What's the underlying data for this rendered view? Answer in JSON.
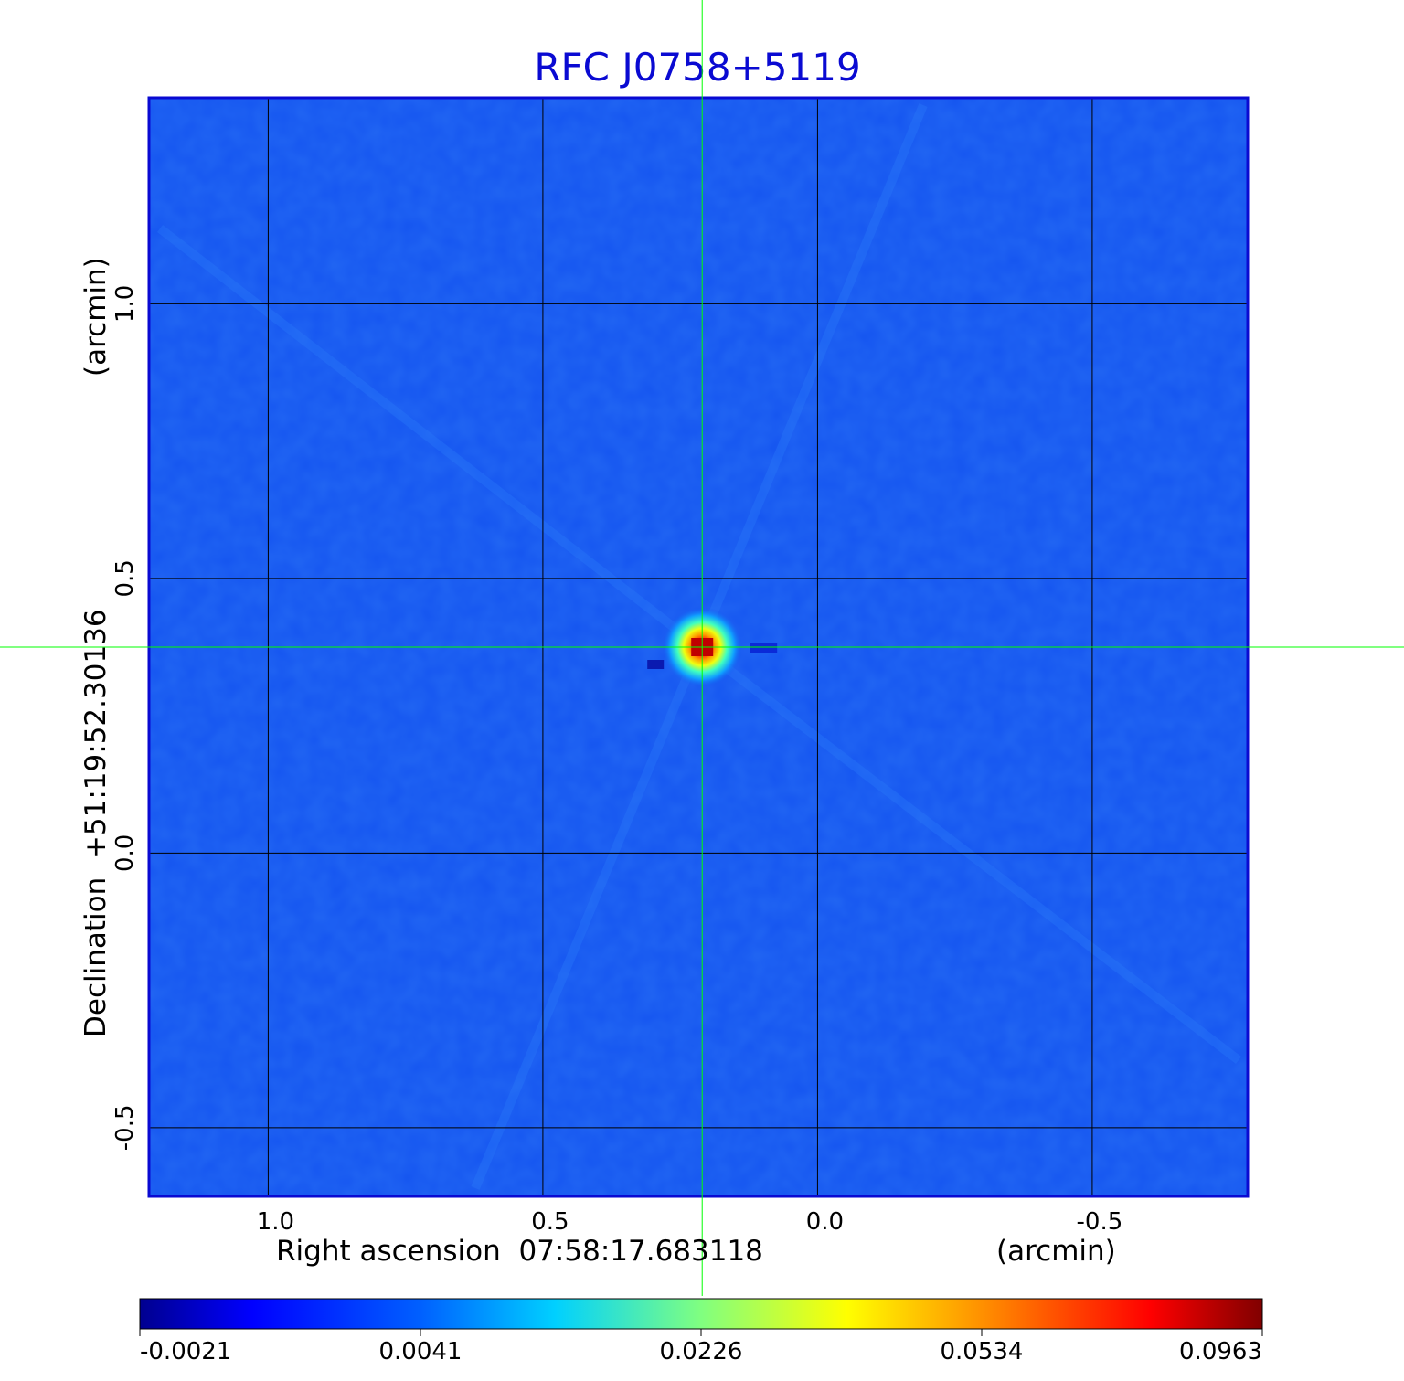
{
  "chart_data": {
    "type": "heatmap",
    "title": "RFC J0758+5119",
    "xlabel": "Right ascension  07:58:17.683118",
    "xunit": "(arcmin)",
    "ylabel": "Declination  +51:19:52.30136",
    "yunit": "(arcmin)",
    "xlim": [
      1.217,
      -0.783
    ],
    "ylim": [
      -0.625,
      1.375
    ],
    "xticks": [
      1.0,
      0.5,
      0.0,
      -0.5
    ],
    "xtick_labels": [
      "1.0",
      "0.5",
      "0.0",
      "-0.5"
    ],
    "yticks": [
      1.0,
      0.5,
      0.0,
      -0.5
    ],
    "ytick_labels": [
      "1.0",
      "0.5",
      "0.0",
      "-0.5"
    ],
    "grid": true,
    "crosshair": {
      "x": 0.21,
      "y": 0.375,
      "color": "#00ff00"
    },
    "source": {
      "x": 0.21,
      "y": 0.375,
      "peak": 0.0963
    },
    "colormap": "jet",
    "colorbar": {
      "tick_labels": [
        "-0.0021",
        "0.0041",
        "0.0226",
        "0.0534",
        "0.0963"
      ],
      "placement": "bottom"
    },
    "colors": {
      "background_field": "#1555f0",
      "title": "#0a0ad2",
      "grid": "#000000",
      "frame": "#0a0ad2"
    }
  }
}
